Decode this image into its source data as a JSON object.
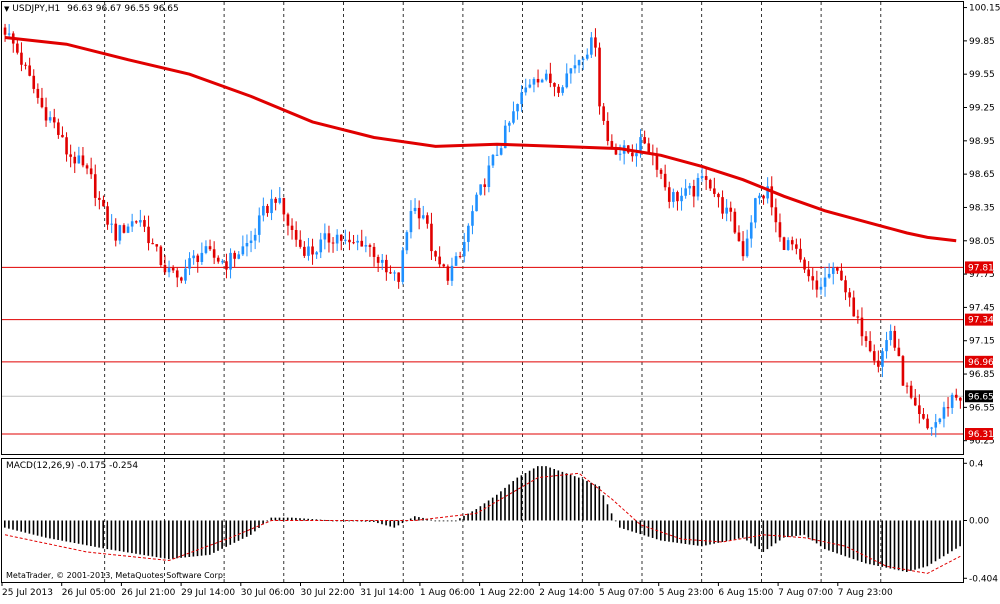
{
  "header": {
    "symbol": "USDJPY,H1",
    "ohlc": "96.63 96.67 96.55 96.65"
  },
  "macd_header": {
    "label": "MACD(12,26,9) -0.175 -0.254"
  },
  "copyright": "MetaTrader, © 2001-2013, MetaQuotes Software Corp.",
  "colors": {
    "bull": "#1e90ff",
    "bear": "#e00000",
    "ma": "#e00000",
    "macd_hist": "#000000",
    "signal": "#e00000",
    "grid": "#000000"
  },
  "chart_data": [
    {
      "type": "candlestick",
      "title": "USDJPY,H1",
      "ohlc_text": "96.63 96.67 96.55 96.65",
      "ylim": [
        96.13,
        100.2
      ],
      "price_ticks": [
        "100.15",
        "99.85",
        "99.55",
        "99.25",
        "98.95",
        "98.65",
        "98.35",
        "98.05",
        "97.75",
        "97.45",
        "97.15",
        "96.85",
        "96.55",
        "96.25"
      ],
      "time_labels": [
        "25 Jul 2013",
        "26 Jul 05:00",
        "26 Jul 21:00",
        "29 Jul 14:00",
        "30 Jul 06:00",
        "30 Jul 22:00",
        "31 Jul 14:00",
        "1 Aug 06:00",
        "1 Aug 22:00",
        "2 Aug 14:00",
        "5 Aug 07:00",
        "5 Aug 23:00",
        "6 Aug 15:00",
        "7 Aug 07:00",
        "7 Aug 23:00"
      ],
      "horizontal_levels": [
        {
          "value": 97.81,
          "label": "97.81"
        },
        {
          "value": 97.34,
          "label": "97.34"
        },
        {
          "value": 96.96,
          "label": "96.96"
        },
        {
          "value": 96.31,
          "label": "96.31"
        }
      ],
      "current_price": {
        "value": 96.65,
        "label": "96.65"
      },
      "close_path": [
        [
          0,
          99.95
        ],
        [
          3,
          99.75
        ],
        [
          6,
          99.5
        ],
        [
          9,
          99.25
        ],
        [
          12,
          99.1
        ],
        [
          15,
          98.85
        ],
        [
          18,
          98.75
        ],
        [
          21,
          98.6
        ],
        [
          24,
          98.3
        ],
        [
          27,
          98.1
        ],
        [
          30,
          98.2
        ],
        [
          33,
          98.25
        ],
        [
          36,
          98.0
        ],
        [
          39,
          97.8
        ],
        [
          42,
          97.7
        ],
        [
          45,
          97.85
        ],
        [
          48,
          97.95
        ],
        [
          51,
          97.9
        ],
        [
          54,
          97.85
        ],
        [
          57,
          97.95
        ],
        [
          60,
          98.05
        ],
        [
          63,
          98.3
        ],
        [
          66,
          98.45
        ],
        [
          69,
          98.2
        ],
        [
          72,
          98.0
        ],
        [
          75,
          97.95
        ],
        [
          78,
          98.05
        ],
        [
          81,
          98.1
        ],
        [
          84,
          98.0
        ],
        [
          87,
          98.05
        ],
        [
          90,
          97.95
        ],
        [
          93,
          97.75
        ],
        [
          96,
          97.7
        ],
        [
          99,
          98.35
        ],
        [
          102,
          98.3
        ],
        [
          105,
          97.85
        ],
        [
          108,
          97.75
        ],
        [
          111,
          97.9
        ],
        [
          114,
          98.3
        ],
        [
          117,
          98.6
        ],
        [
          120,
          98.85
        ],
        [
          123,
          99.1
        ],
        [
          126,
          99.35
        ],
        [
          129,
          99.55
        ],
        [
          132,
          99.5
        ],
        [
          135,
          99.45
        ],
        [
          138,
          99.6
        ],
        [
          141,
          99.75
        ],
        [
          144,
          99.85
        ],
        [
          145,
          99.3
        ],
        [
          147,
          98.95
        ],
        [
          150,
          98.85
        ],
        [
          153,
          98.85
        ],
        [
          156,
          98.95
        ],
        [
          159,
          98.75
        ],
        [
          162,
          98.45
        ],
        [
          165,
          98.45
        ],
        [
          168,
          98.5
        ],
        [
          171,
          98.65
        ],
        [
          174,
          98.4
        ],
        [
          177,
          98.25
        ],
        [
          180,
          97.95
        ],
        [
          183,
          98.4
        ],
        [
          186,
          98.5
        ],
        [
          189,
          98.05
        ],
        [
          192,
          98.0
        ],
        [
          195,
          97.75
        ],
        [
          198,
          97.6
        ],
        [
          201,
          97.75
        ],
        [
          204,
          97.75
        ],
        [
          207,
          97.35
        ],
        [
          210,
          97.2
        ],
        [
          213,
          96.95
        ],
        [
          216,
          97.25
        ],
        [
          219,
          96.8
        ],
        [
          222,
          96.5
        ],
        [
          225,
          96.35
        ],
        [
          228,
          96.45
        ],
        [
          231,
          96.65
        ],
        [
          233,
          96.65
        ]
      ],
      "ma_path": [
        [
          0,
          99.88
        ],
        [
          15,
          99.82
        ],
        [
          30,
          99.68
        ],
        [
          45,
          99.55
        ],
        [
          60,
          99.35
        ],
        [
          75,
          99.12
        ],
        [
          90,
          98.98
        ],
        [
          105,
          98.9
        ],
        [
          120,
          98.92
        ],
        [
          135,
          98.9
        ],
        [
          150,
          98.88
        ],
        [
          160,
          98.82
        ],
        [
          170,
          98.72
        ],
        [
          180,
          98.6
        ],
        [
          190,
          98.45
        ],
        [
          200,
          98.32
        ],
        [
          210,
          98.22
        ],
        [
          220,
          98.12
        ],
        [
          225,
          98.08
        ],
        [
          232,
          98.05
        ]
      ]
    },
    {
      "type": "histogram",
      "title": "MACD(12,26,9) -0.175 -0.254",
      "ylim": [
        -0.43,
        0.43
      ],
      "ticks": [
        "0.4",
        "0.00",
        "-0.404"
      ],
      "macd_path": [
        [
          0,
          -0.05
        ],
        [
          10,
          -0.12
        ],
        [
          25,
          -0.2
        ],
        [
          40,
          -0.27
        ],
        [
          50,
          -0.24
        ],
        [
          60,
          -0.1
        ],
        [
          65,
          0.02
        ],
        [
          70,
          0.02
        ],
        [
          80,
          0.0
        ],
        [
          90,
          -0.01
        ],
        [
          95,
          -0.05
        ],
        [
          100,
          0.03
        ],
        [
          105,
          0.0
        ],
        [
          110,
          0.0
        ],
        [
          115,
          0.08
        ],
        [
          120,
          0.18
        ],
        [
          125,
          0.3
        ],
        [
          130,
          0.38
        ],
        [
          132,
          0.38
        ],
        [
          140,
          0.3
        ],
        [
          145,
          0.24
        ],
        [
          148,
          0.05
        ],
        [
          150,
          -0.05
        ],
        [
          160,
          -0.14
        ],
        [
          170,
          -0.18
        ],
        [
          180,
          -0.12
        ],
        [
          185,
          -0.22
        ],
        [
          190,
          -0.12
        ],
        [
          195,
          -0.1
        ],
        [
          200,
          -0.2
        ],
        [
          210,
          -0.3
        ],
        [
          220,
          -0.36
        ],
        [
          225,
          -0.32
        ],
        [
          233,
          -0.18
        ]
      ],
      "signal_path": [
        [
          0,
          -0.1
        ],
        [
          20,
          -0.22
        ],
        [
          40,
          -0.28
        ],
        [
          55,
          -0.12
        ],
        [
          65,
          0.0
        ],
        [
          80,
          0.0
        ],
        [
          100,
          0.0
        ],
        [
          115,
          0.05
        ],
        [
          130,
          0.3
        ],
        [
          140,
          0.33
        ],
        [
          148,
          0.15
        ],
        [
          155,
          -0.03
        ],
        [
          165,
          -0.13
        ],
        [
          175,
          -0.15
        ],
        [
          185,
          -0.1
        ],
        [
          195,
          -0.12
        ],
        [
          205,
          -0.18
        ],
        [
          215,
          -0.32
        ],
        [
          225,
          -0.37
        ],
        [
          233,
          -0.25
        ]
      ]
    }
  ]
}
